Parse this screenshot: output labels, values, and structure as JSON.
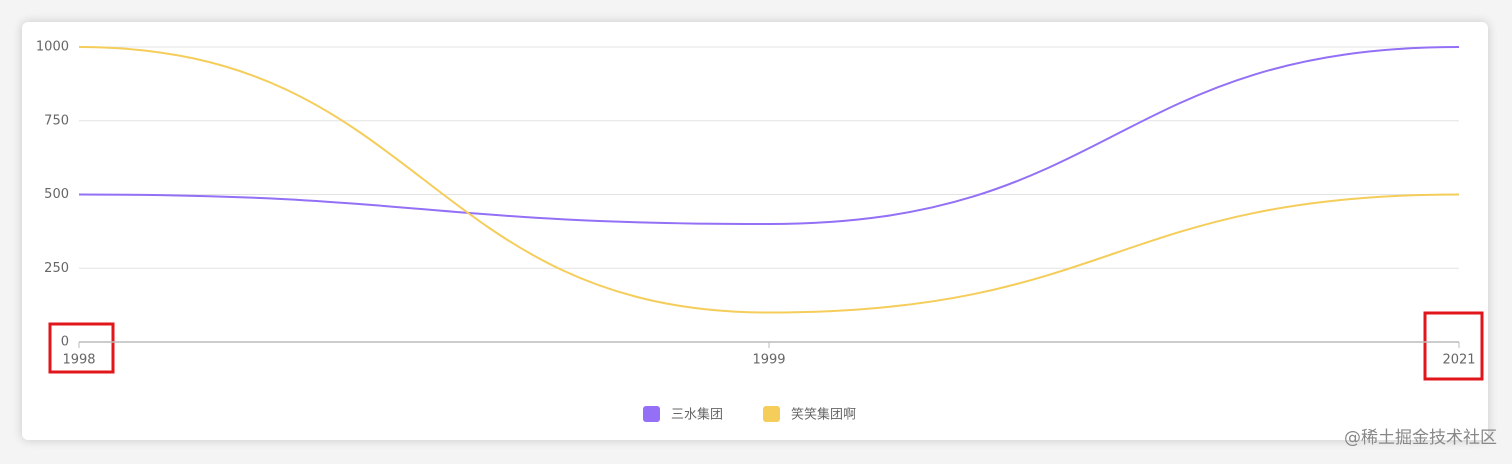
{
  "chart_data": {
    "type": "line",
    "categories": [
      "1998",
      "1999",
      "2021"
    ],
    "series": [
      {
        "name": "三水集团",
        "color": "#9370f5",
        "values": [
          500,
          400,
          1000
        ]
      },
      {
        "name": "笑笑集团啊",
        "color": "#f5cd5a",
        "values": [
          1000,
          100,
          500
        ]
      }
    ],
    "ylim": [
      0,
      1000
    ],
    "yticks": [
      0,
      250,
      500,
      750,
      1000
    ],
    "grid": true,
    "smooth": true,
    "legend": "bottom"
  },
  "watermark": "@稀土掘金技术社区"
}
